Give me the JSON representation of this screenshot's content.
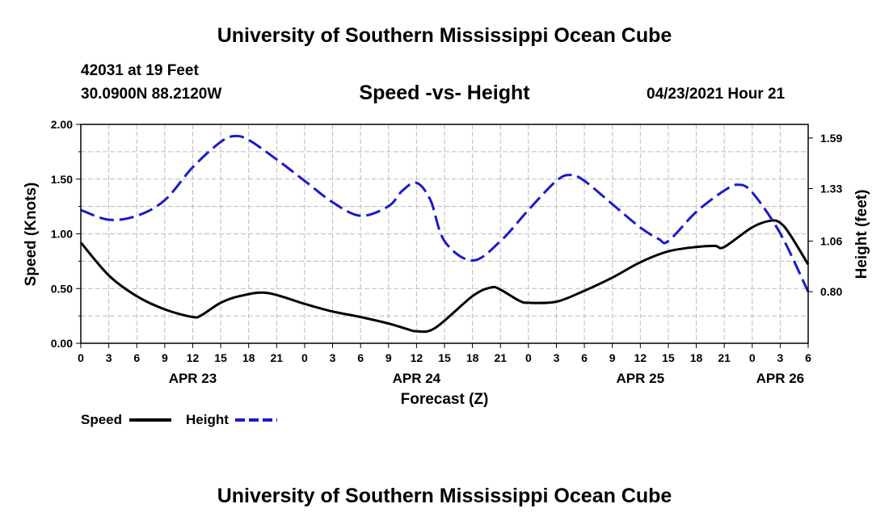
{
  "header": {
    "top_title": "University of Southern Mississippi Ocean Cube",
    "bottom_title": "University of Southern Mississippi Ocean Cube",
    "station": "42031 at 19 Feet",
    "coords": "30.0900N  88.2120W",
    "subtitle": "Speed -vs- Height",
    "datetime": "04/23/2021 Hour 21"
  },
  "colors": {
    "speed": "#000000",
    "height": "#1a1acc",
    "grid": "#bbbbbb"
  },
  "chart_data": {
    "type": "line",
    "title": "Speed -vs- Height",
    "xlabel": "Forecast (Z)",
    "ylabel": "Speed (Knots)",
    "y2label": "Height (feet)",
    "x_range": [
      0,
      78
    ],
    "ylim": [
      0,
      2.0
    ],
    "y2lim": [
      0.535,
      1.66
    ],
    "grid": true,
    "x_tick_labels": [
      "0",
      "3",
      "6",
      "9",
      "12",
      "15",
      "18",
      "21",
      "0",
      "3",
      "6",
      "9",
      "12",
      "15",
      "18",
      "21",
      "0",
      "3",
      "6",
      "9",
      "12",
      "15",
      "18",
      "21",
      "0",
      "3",
      "6"
    ],
    "date_labels": [
      {
        "label": "APR 23",
        "x": 12
      },
      {
        "label": "APR 24",
        "x": 36
      },
      {
        "label": "APR 25",
        "x": 60
      },
      {
        "label": "APR 26",
        "x": 75
      }
    ],
    "y_ticks": [
      "0.00",
      "0.50",
      "1.00",
      "1.50",
      "2.00"
    ],
    "y2_ticks": [
      "0.80",
      "1.06",
      "1.33",
      "1.59"
    ],
    "legend": [
      {
        "label": "Speed",
        "style": "solid"
      },
      {
        "label": "Height",
        "style": "dashed"
      }
    ],
    "series": [
      {
        "name": "Speed",
        "axis": "left",
        "style": "solid",
        "x": [
          0,
          3,
          6,
          9,
          12,
          13,
          15,
          17,
          20,
          24,
          27,
          30,
          33,
          35,
          36,
          38,
          42,
          44,
          45,
          47,
          48,
          51,
          54,
          57,
          60,
          63,
          66,
          68,
          69,
          72,
          74,
          75,
          76,
          78
        ],
        "y": [
          0.92,
          0.62,
          0.43,
          0.31,
          0.24,
          0.26,
          0.37,
          0.43,
          0.46,
          0.36,
          0.29,
          0.24,
          0.18,
          0.13,
          0.11,
          0.14,
          0.43,
          0.51,
          0.49,
          0.39,
          0.37,
          0.38,
          0.48,
          0.6,
          0.74,
          0.84,
          0.88,
          0.89,
          0.88,
          1.06,
          1.12,
          1.1,
          1.0,
          0.72
        ]
      },
      {
        "name": "Height",
        "axis": "right",
        "style": "dashed",
        "x": [
          0,
          3,
          6,
          9,
          12,
          15,
          16.5,
          18,
          21,
          24,
          27,
          30,
          33,
          34.5,
          36,
          37.5,
          39,
          42,
          45,
          48,
          51,
          52.5,
          54,
          57,
          60,
          62,
          63,
          66,
          69,
          70.5,
          72,
          75,
          78
        ],
        "y": [
          1.22,
          1.17,
          1.19,
          1.27,
          1.44,
          1.57,
          1.6,
          1.58,
          1.48,
          1.37,
          1.26,
          1.19,
          1.24,
          1.32,
          1.36,
          1.27,
          1.06,
          0.96,
          1.06,
          1.22,
          1.37,
          1.4,
          1.37,
          1.25,
          1.13,
          1.07,
          1.06,
          1.21,
          1.32,
          1.35,
          1.31,
          1.1,
          0.8
        ]
      }
    ]
  }
}
